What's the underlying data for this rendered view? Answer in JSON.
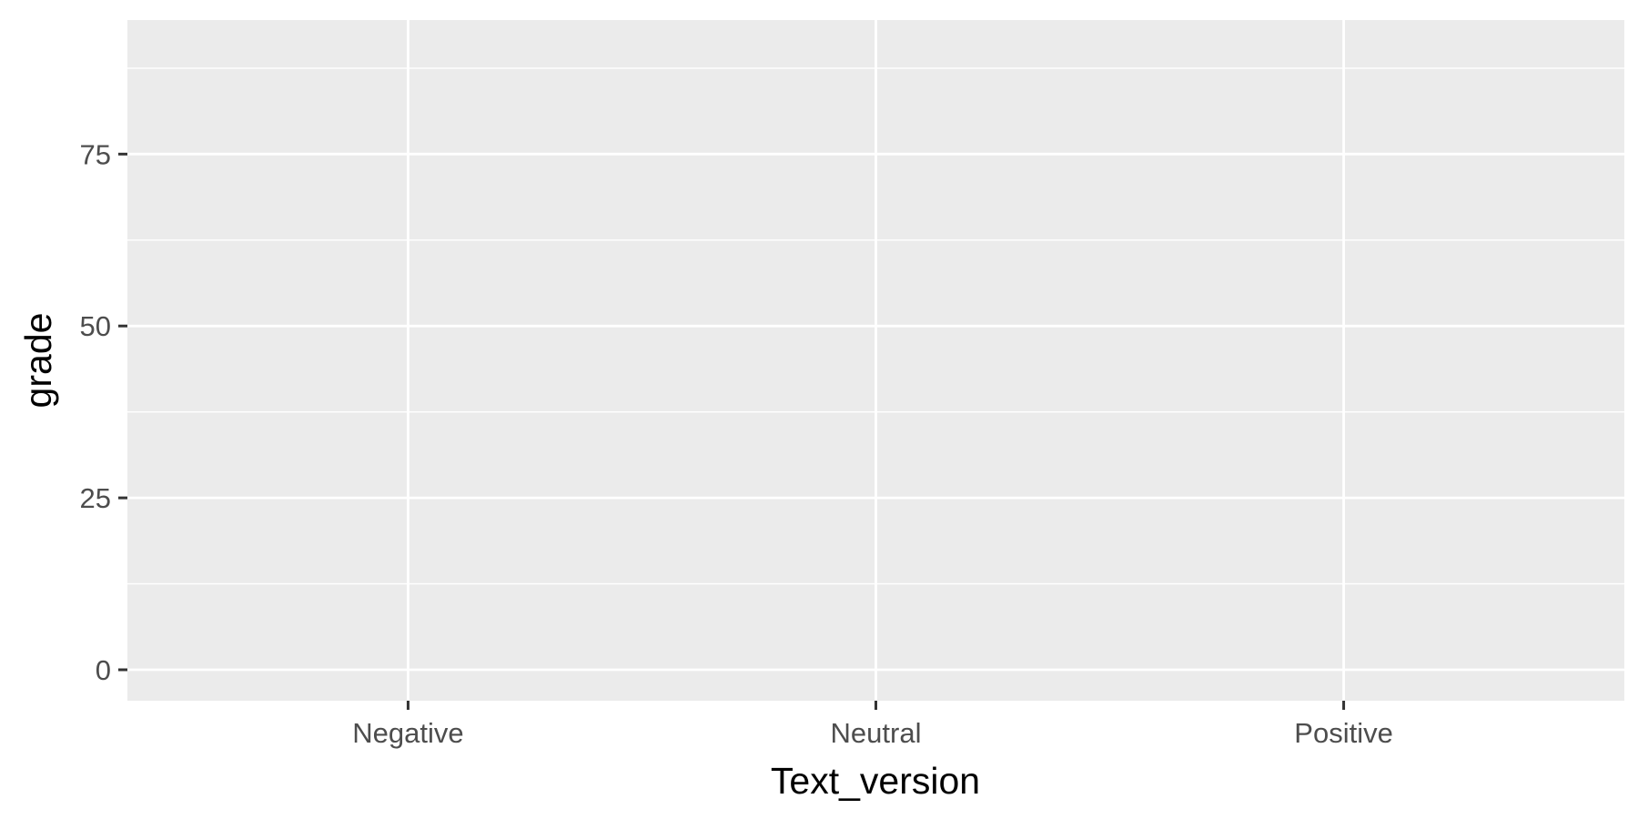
{
  "chart_data": {
    "type": "bar",
    "title": "",
    "xlabel": "Text_version",
    "ylabel": "grade",
    "categories": [
      "Negative",
      "Neutral",
      "Positive"
    ],
    "series": [],
    "y_ticks": [
      0,
      25,
      50,
      75
    ],
    "ylim": [
      -4.5,
      94.5
    ],
    "grid": true,
    "legend": "none",
    "colors": {
      "panel_background": "#EBEBEB",
      "grid_line": "#FFFFFF",
      "tick_label": "#4D4D4D",
      "axis_title": "#000000",
      "axis_tick": "#333333"
    }
  }
}
